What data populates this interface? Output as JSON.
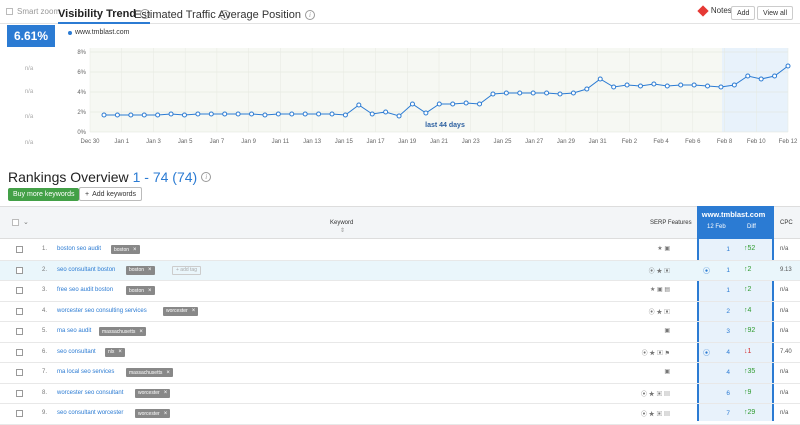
{
  "header": {
    "smart_zoom": "Smart zoom",
    "tabs": [
      {
        "label": "Visibility Trend"
      },
      {
        "label": "Estimated Traffic"
      },
      {
        "label": "Average Position"
      }
    ],
    "notes_label": "Notes:",
    "add_label": "Add",
    "view_all_label": "View all"
  },
  "side": {
    "visibility_pct": "6.61%",
    "na": "n/a"
  },
  "chart_data": {
    "type": "line",
    "series": [
      {
        "name": "www.tmblast.com",
        "values": [
          1.7,
          1.7,
          1.7,
          1.7,
          1.7,
          1.8,
          1.7,
          1.8,
          1.8,
          1.8,
          1.8,
          1.8,
          1.7,
          1.8,
          1.8,
          1.8,
          1.8,
          1.8,
          1.7,
          2.7,
          1.8,
          2.0,
          1.6,
          2.8,
          1.9,
          2.8,
          2.8,
          2.9,
          2.8,
          3.8,
          3.9,
          3.9,
          3.9,
          3.9,
          3.8,
          3.9,
          4.3,
          5.3,
          4.5,
          4.7,
          4.6,
          4.8,
          4.6,
          4.7,
          4.7,
          4.6,
          4.5,
          4.7,
          5.6,
          5.3,
          5.6,
          6.6
        ]
      }
    ],
    "x_tick_labels": [
      "Dec 30",
      "Jan 1",
      "Jan 3",
      "Jan 5",
      "Jan 7",
      "Jan 9",
      "Jan 11",
      "Jan 13",
      "Jan 15",
      "Jan 17",
      "Jan 19",
      "Jan 21",
      "Jan 23",
      "Jan 25",
      "Jan 27",
      "Jan 29",
      "Jan 31",
      "Feb 2",
      "Feb 4",
      "Feb 6",
      "Feb 8",
      "Feb 10",
      "Feb 12"
    ],
    "y_tick_labels": [
      "0%",
      "2%",
      "4%",
      "6%",
      "8%"
    ],
    "ylim": [
      0,
      8
    ],
    "annotation": "last 44 days",
    "grid": true,
    "colors": {
      "line": "#2b7bd3",
      "highlight": "#e8f2fb"
    }
  },
  "rankings": {
    "title": "Rankings Overview",
    "range": "1 - 74 (74)",
    "buy_more_label": "Buy more keywords",
    "add_keywords_label": "Add keywords",
    "columns": {
      "keyword": "Keyword",
      "serp": "SERP Features",
      "domain": "www.tmblast.com",
      "date": "12 Feb",
      "diff": "Diff",
      "cpc": "CPC"
    },
    "add_tag_label": "+ add tag",
    "rows": [
      {
        "n": "1.",
        "kw": "boston seo audit",
        "tag": "boston",
        "rank": "1",
        "diff": "52",
        "dir": "up",
        "cpc": "n/a",
        "serp": "★ ▣",
        "pin": false
      },
      {
        "n": "2.",
        "kw": "seo consultant boston",
        "tag": "boston",
        "rank": "1",
        "diff": "2",
        "dir": "up",
        "cpc": "9.13",
        "serp": "⦿ ★ ▣",
        "pin": true
      },
      {
        "n": "3.",
        "kw": "free seo audit boston",
        "tag": "boston",
        "rank": "1",
        "diff": "2",
        "dir": "up",
        "cpc": "n/a",
        "serp": "★ ▣ ▤",
        "pin": false
      },
      {
        "n": "4.",
        "kw": "worcester seo consulting services",
        "tag": "worcester",
        "rank": "2",
        "diff": "4",
        "dir": "up",
        "cpc": "n/a",
        "serp": "⦿ ★ ▣",
        "pin": false
      },
      {
        "n": "5.",
        "kw": "ma seo audit",
        "tag": "massachusetts",
        "rank": "3",
        "diff": "92",
        "dir": "up",
        "cpc": "n/a",
        "serp": "▣",
        "pin": false
      },
      {
        "n": "6.",
        "kw": "seo consultant",
        "tag": "nlx",
        "rank": "4",
        "diff": "1",
        "dir": "down",
        "cpc": "7.40",
        "serp": "⦿ ★ ▣ ⚑",
        "pin": true
      },
      {
        "n": "7.",
        "kw": "ma local seo services",
        "tag": "massachusetts",
        "rank": "4",
        "diff": "35",
        "dir": "up",
        "cpc": "n/a",
        "serp": "▣",
        "pin": false
      },
      {
        "n": "8.",
        "kw": "worcester seo consultant",
        "tag": "worcester",
        "rank": "6",
        "diff": "9",
        "dir": "up",
        "cpc": "n/a",
        "serp": "⦿ ★ ▣ ▤",
        "pin": false
      },
      {
        "n": "9.",
        "kw": "seo consultant worcester",
        "tag": "worcester",
        "rank": "7",
        "diff": "29",
        "dir": "up",
        "cpc": "n/a",
        "serp": "⦿ ★ ▣ ▤",
        "pin": false
      }
    ]
  }
}
